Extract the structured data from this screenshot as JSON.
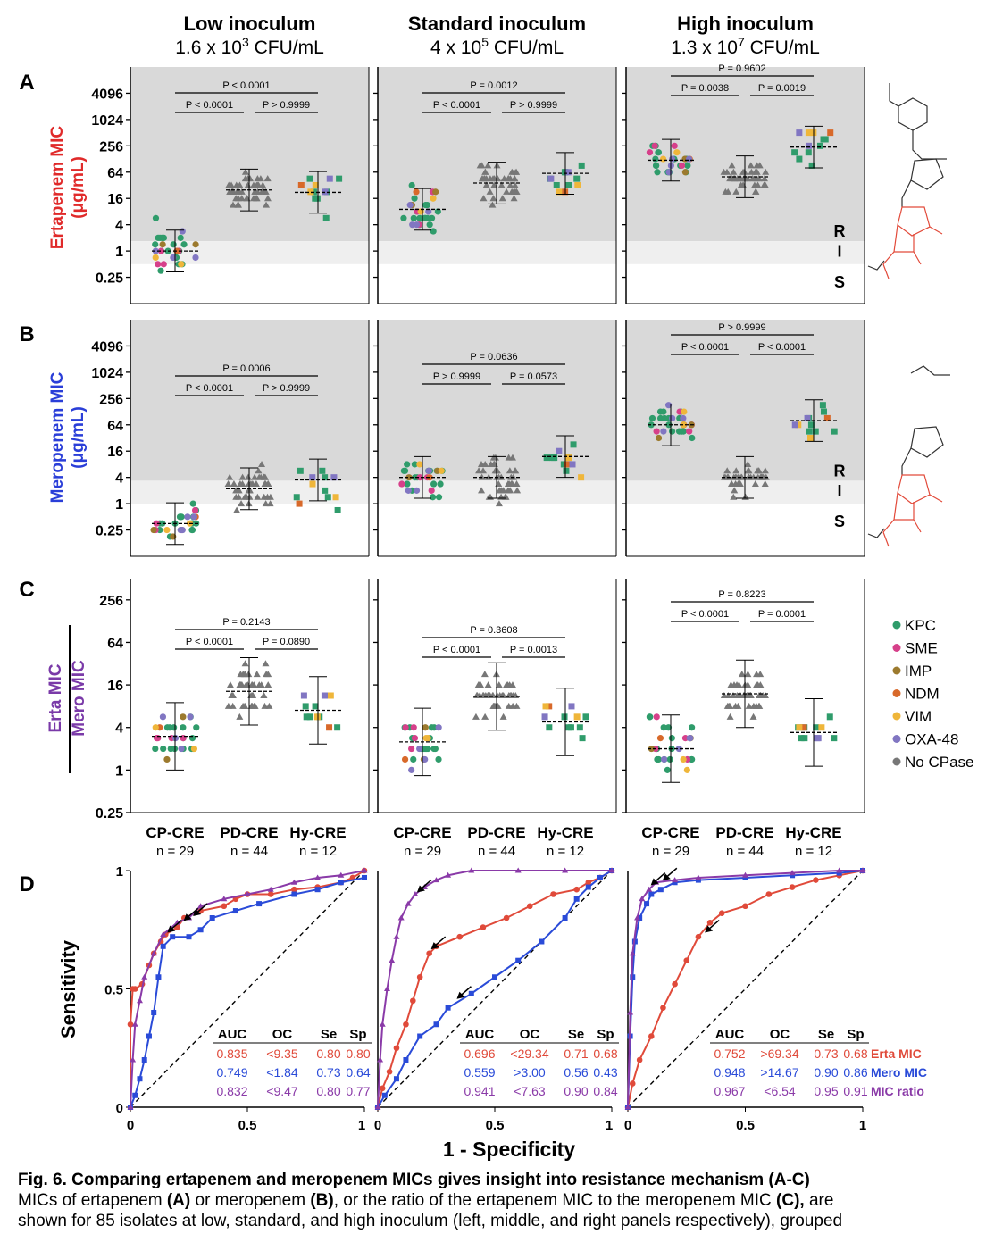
{
  "figure": {
    "column_headers": [
      {
        "title": "Low inoculum",
        "sub_base": "1.6 x 10",
        "sub_exp": "3",
        "sub_unit": " CFU/mL"
      },
      {
        "title": "Standard inoculum",
        "sub_base": "4 x 10",
        "sub_exp": "5",
        "sub_unit": " CFU/mL"
      },
      {
        "title": "High inoculum",
        "sub_base": "1.3 x 10",
        "sub_exp": "7",
        "sub_unit": " CFU/mL"
      }
    ],
    "row_letters": [
      "A",
      "B",
      "C",
      "D"
    ],
    "row_ylabels": {
      "A": [
        "Ertapenem MIC",
        "(μg/mL)"
      ],
      "B": [
        "Meropenem MIC",
        "(μg/mL)"
      ],
      "C_numerator": "Erta MIC",
      "C_denominator": "Mero MIC"
    },
    "ris_labels": [
      "R",
      "I",
      "S"
    ],
    "groups": [
      {
        "name": "CP-CRE",
        "n": "n = 29"
      },
      {
        "name": "PD-CRE",
        "n": "n = 44"
      },
      {
        "name": "Hy-CRE",
        "n": "n = 12"
      }
    ],
    "legend": [
      {
        "label": "KPC",
        "color": "#2f9c6b"
      },
      {
        "label": "SME",
        "color": "#d6408a"
      },
      {
        "label": "IMP",
        "color": "#9c7a2e"
      },
      {
        "label": "NDM",
        "color": "#d8692a"
      },
      {
        "label": "VIM",
        "color": "#efb63a"
      },
      {
        "label": "OXA-48",
        "color": "#8176c2"
      },
      {
        "label": "No CPase",
        "color": "#777777"
      }
    ],
    "roc_axis": {
      "ylabel": "Sensitivity",
      "xlabel": "1 - Specificity",
      "yticks": [
        "0",
        "0.5",
        "1"
      ],
      "xticks": [
        "0",
        "0.5",
        "1"
      ]
    },
    "roc_table_header": [
      "AUC",
      "OC",
      "Se",
      "Sp"
    ],
    "roc_series_names": [
      "Erta MIC",
      "Mero MIC",
      "MIC ratio"
    ]
  },
  "chart_data": [
    {
      "type": "scatter",
      "row": "A",
      "title": "Ertapenem MIC (μg/mL)",
      "ylabel": "Ertapenem MIC (μg/mL)",
      "yscale": "log2",
      "ylim": [
        0.0625,
        16384
      ],
      "yticks": [
        "0.25",
        "1",
        "4",
        "16",
        "64",
        "256",
        "1024",
        "4096"
      ],
      "categories": [
        "CP-CRE",
        "PD-CRE",
        "Hy-CRE"
      ],
      "breakpoints": {
        "S_max": 0.5,
        "I_max": 1
      },
      "panels": [
        {
          "inoculum": "Low",
          "medians": [
            1.0,
            25,
            22
          ],
          "pvalues": [
            {
              "from": 0,
              "to": 1,
              "text": "P < 0.0001",
              "level": 0
            },
            {
              "from": 1,
              "to": 2,
              "text": "P > 0.9999",
              "level": 0
            },
            {
              "from": 0,
              "to": 2,
              "text": "P < 0.0001",
              "level": 1
            }
          ]
        },
        {
          "inoculum": "Standard",
          "medians": [
            9,
            36,
            60
          ],
          "pvalues": [
            {
              "from": 0,
              "to": 1,
              "text": "P < 0.0001",
              "level": 0
            },
            {
              "from": 1,
              "to": 2,
              "text": "P > 0.9999",
              "level": 0
            },
            {
              "from": 0,
              "to": 2,
              "text": "P = 0.0012",
              "level": 1
            }
          ]
        },
        {
          "inoculum": "High",
          "medians": [
            120,
            50,
            240
          ],
          "pvalues": [
            {
              "from": 0,
              "to": 1,
              "text": "P = 0.0038",
              "level": 0
            },
            {
              "from": 1,
              "to": 2,
              "text": "P = 0.0019",
              "level": 0
            },
            {
              "from": 0,
              "to": 2,
              "text": "P = 0.9602",
              "level": 1
            }
          ]
        }
      ]
    },
    {
      "type": "scatter",
      "row": "B",
      "title": "Meropenem MIC (μg/mL)",
      "ylabel": "Meropenem MIC (μg/mL)",
      "yscale": "log2",
      "ylim": [
        0.0625,
        16384
      ],
      "yticks": [
        "0.25",
        "1",
        "4",
        "16",
        "64",
        "256",
        "1024",
        "4096"
      ],
      "categories": [
        "CP-CRE",
        "PD-CRE",
        "Hy-CRE"
      ],
      "breakpoints": {
        "S_max": 1,
        "I_max": 2
      },
      "panels": [
        {
          "inoculum": "Low",
          "medians": [
            0.35,
            2.2,
            3.5
          ],
          "pvalues": [
            {
              "from": 0,
              "to": 1,
              "text": "P < 0.0001",
              "level": 0
            },
            {
              "from": 1,
              "to": 2,
              "text": "P > 0.9999",
              "level": 0
            },
            {
              "from": 0,
              "to": 2,
              "text": "P = 0.0006",
              "level": 1
            }
          ]
        },
        {
          "inoculum": "Standard",
          "medians": [
            4,
            4,
            12
          ],
          "pvalues": [
            {
              "from": 0,
              "to": 1,
              "text": "P > 0.9999",
              "level": 0
            },
            {
              "from": 1,
              "to": 2,
              "text": "P = 0.0573",
              "level": 0
            },
            {
              "from": 0,
              "to": 2,
              "text": "P = 0.0636",
              "level": 1
            }
          ]
        },
        {
          "inoculum": "High",
          "medians": [
            64,
            4,
            80
          ],
          "pvalues": [
            {
              "from": 0,
              "to": 1,
              "text": "P < 0.0001",
              "level": 0
            },
            {
              "from": 1,
              "to": 2,
              "text": "P < 0.0001",
              "level": 0
            },
            {
              "from": 0,
              "to": 2,
              "text": "P > 0.9999",
              "level": 1
            }
          ]
        }
      ]
    },
    {
      "type": "scatter",
      "row": "C",
      "title": "Erta MIC / Mero MIC",
      "ylabel": "Erta MIC / Mero MIC",
      "yscale": "log2",
      "ylim": [
        0.25,
        512
      ],
      "yticks": [
        "0.25",
        "1",
        "4",
        "16",
        "64",
        "256"
      ],
      "categories": [
        "CP-CRE",
        "PD-CRE",
        "Hy-CRE"
      ],
      "panels": [
        {
          "inoculum": "Low",
          "medians": [
            3,
            13,
            7
          ],
          "pvalues": [
            {
              "from": 0,
              "to": 1,
              "text": "P < 0.0001",
              "level": 0
            },
            {
              "from": 1,
              "to": 2,
              "text": "P = 0.0890",
              "level": 0
            },
            {
              "from": 0,
              "to": 2,
              "text": "P = 0.2143",
              "level": 1
            }
          ]
        },
        {
          "inoculum": "Standard",
          "medians": [
            2.5,
            11,
            4.8
          ],
          "pvalues": [
            {
              "from": 0,
              "to": 1,
              "text": "P < 0.0001",
              "level": 0
            },
            {
              "from": 1,
              "to": 2,
              "text": "P = 0.0013",
              "level": 0
            },
            {
              "from": 0,
              "to": 2,
              "text": "P = 0.3608",
              "level": 1
            }
          ]
        },
        {
          "inoculum": "High",
          "medians": [
            2,
            12,
            3.4
          ],
          "pvalues": [
            {
              "from": 0,
              "to": 1,
              "text": "P < 0.0001",
              "level": 0
            },
            {
              "from": 1,
              "to": 2,
              "text": "P = 0.0001",
              "level": 0
            },
            {
              "from": 0,
              "to": 2,
              "text": "P = 0.8223",
              "level": 1
            }
          ]
        }
      ]
    },
    {
      "type": "line",
      "row": "D",
      "title": "ROC curves",
      "xlabel": "1 - Specificity",
      "ylabel": "Sensitivity",
      "xlim": [
        0,
        1
      ],
      "ylim": [
        0,
        1
      ],
      "panels": [
        {
          "inoculum": "Low",
          "series": [
            {
              "name": "Erta MIC",
              "color": "#e04a3a",
              "AUC": "0.835",
              "OC": "<9.35",
              "Se": "0.80",
              "Sp": "0.80",
              "x": [
                0,
                0,
                0.01,
                0.02,
                0.05,
                0.08,
                0.1,
                0.13,
                0.15,
                0.2,
                0.23,
                0.3,
                0.4,
                0.45,
                0.5,
                0.6,
                0.7,
                0.8,
                0.9,
                0.95,
                1
              ],
              "y": [
                0,
                0.35,
                0.5,
                0.5,
                0.52,
                0.6,
                0.65,
                0.7,
                0.73,
                0.76,
                0.8,
                0.83,
                0.85,
                0.88,
                0.9,
                0.9,
                0.92,
                0.93,
                0.95,
                0.97,
                1
              ]
            },
            {
              "name": "Mero MIC",
              "color": "#2a4bd8",
              "AUC": "0.749",
              "OC": "<1.84",
              "Se": "0.73",
              "Sp": "0.64",
              "x": [
                0,
                0.02,
                0.04,
                0.06,
                0.08,
                0.1,
                0.12,
                0.14,
                0.18,
                0.25,
                0.3,
                0.35,
                0.45,
                0.55,
                0.7,
                0.8,
                0.9,
                1
              ],
              "y": [
                0,
                0.05,
                0.12,
                0.2,
                0.3,
                0.4,
                0.55,
                0.68,
                0.72,
                0.72,
                0.75,
                0.8,
                0.83,
                0.86,
                0.9,
                0.92,
                0.95,
                0.97
              ]
            },
            {
              "name": "MIC ratio",
              "color": "#8a3aa8",
              "AUC": "0.832",
              "OC": "<9.47",
              "Se": "0.80",
              "Sp": "0.77",
              "x": [
                0,
                0.01,
                0.02,
                0.04,
                0.06,
                0.1,
                0.14,
                0.2,
                0.25,
                0.3,
                0.4,
                0.5,
                0.6,
                0.7,
                0.8,
                0.9,
                1
              ],
              "y": [
                0,
                0.2,
                0.35,
                0.45,
                0.55,
                0.65,
                0.73,
                0.78,
                0.8,
                0.85,
                0.88,
                0.9,
                0.92,
                0.95,
                0.97,
                0.98,
                1
              ]
            }
          ]
        },
        {
          "inoculum": "Standard",
          "series": [
            {
              "name": "Erta MIC",
              "color": "#e04a3a",
              "AUC": "0.696",
              "OC": "<29.34",
              "Se": "0.71",
              "Sp": "0.68",
              "x": [
                0,
                0.02,
                0.05,
                0.08,
                0.12,
                0.15,
                0.18,
                0.22,
                0.25,
                0.35,
                0.45,
                0.55,
                0.65,
                0.75,
                0.85,
                0.9,
                0.95,
                1
              ],
              "y": [
                0,
                0.08,
                0.15,
                0.25,
                0.35,
                0.45,
                0.55,
                0.65,
                0.68,
                0.72,
                0.76,
                0.8,
                0.85,
                0.9,
                0.92,
                0.95,
                0.97,
                1
              ]
            },
            {
              "name": "Mero MIC",
              "color": "#2a4bd8",
              "AUC": "0.559",
              "OC": ">3.00",
              "Se": "0.56",
              "Sp": "0.43",
              "x": [
                0,
                0.03,
                0.08,
                0.12,
                0.18,
                0.25,
                0.3,
                0.4,
                0.5,
                0.6,
                0.7,
                0.8,
                0.85,
                0.9,
                0.95,
                1
              ],
              "y": [
                0,
                0.05,
                0.12,
                0.2,
                0.3,
                0.35,
                0.42,
                0.48,
                0.55,
                0.62,
                0.7,
                0.8,
                0.88,
                0.93,
                0.97,
                1
              ]
            },
            {
              "name": "MIC ratio",
              "color": "#8a3aa8",
              "AUC": "0.941",
              "OC": "<7.63",
              "Se": "0.90",
              "Sp": "0.84",
              "x": [
                0,
                0.01,
                0.02,
                0.04,
                0.06,
                0.08,
                0.1,
                0.13,
                0.16,
                0.2,
                0.25,
                0.3,
                0.4,
                0.6,
                0.8,
                1
              ],
              "y": [
                0,
                0.2,
                0.35,
                0.5,
                0.62,
                0.72,
                0.8,
                0.86,
                0.9,
                0.93,
                0.96,
                0.98,
                1,
                1,
                1,
                1
              ]
            }
          ]
        },
        {
          "inoculum": "High",
          "series": [
            {
              "name": "Erta MIC",
              "color": "#e04a3a",
              "AUC": "0.752",
              "OC": ">69.34",
              "Se": "0.73",
              "Sp": "0.68",
              "x": [
                0,
                0.02,
                0.05,
                0.1,
                0.15,
                0.2,
                0.25,
                0.3,
                0.35,
                0.4,
                0.5,
                0.6,
                0.7,
                0.8,
                0.9,
                1
              ],
              "y": [
                0,
                0.1,
                0.2,
                0.3,
                0.42,
                0.52,
                0.62,
                0.72,
                0.78,
                0.82,
                0.85,
                0.9,
                0.93,
                0.96,
                0.98,
                1
              ]
            },
            {
              "name": "Mero MIC",
              "color": "#2a4bd8",
              "AUC": "0.948",
              "OC": ">14.67",
              "Se": "0.90",
              "Sp": "0.86",
              "x": [
                0,
                0.01,
                0.02,
                0.03,
                0.05,
                0.08,
                0.1,
                0.14,
                0.2,
                0.3,
                0.5,
                0.7,
                0.9,
                1
              ],
              "y": [
                0,
                0.3,
                0.55,
                0.7,
                0.8,
                0.86,
                0.9,
                0.92,
                0.95,
                0.96,
                0.97,
                0.98,
                0.99,
                1
              ]
            },
            {
              "name": "MIC ratio",
              "color": "#8a3aa8",
              "AUC": "0.967",
              "OC": "<6.54",
              "Se": "0.95",
              "Sp": "0.91",
              "x": [
                0,
                0.01,
                0.02,
                0.04,
                0.06,
                0.09,
                0.12,
                0.2,
                0.3,
                0.5,
                0.7,
                0.9,
                1
              ],
              "y": [
                0,
                0.4,
                0.65,
                0.8,
                0.88,
                0.92,
                0.95,
                0.96,
                0.97,
                0.98,
                0.99,
                1,
                1
              ]
            }
          ]
        }
      ]
    }
  ],
  "caption": {
    "title": "Fig. 6. Comparing ertapenem and meropenem MICs gives insight into resistance mechanism (A-C)",
    "p1": "MICs of ertapenem ",
    "b1": "(A)",
    "p2": " or meropenem ",
    "b2": "(B)",
    "p3": ", or the ratio of the ertapenem MIC to the meropenem MIC ",
    "b3": "(C),",
    "p4": " are",
    "line3": "shown for 85 isolates at low, standard, and high inoculum (left, middle, and right panels respectively), grouped"
  }
}
